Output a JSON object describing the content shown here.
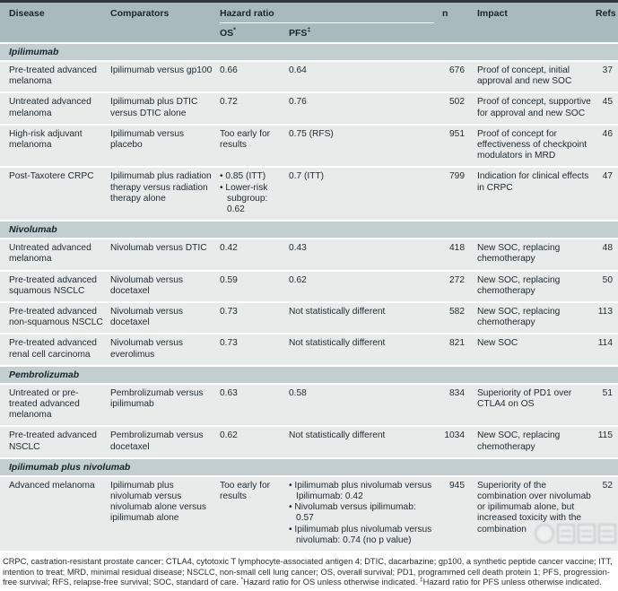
{
  "colors": {
    "top_bar": "#2e373b",
    "header_bg": "#a9babd",
    "section_bg": "#c3ced0",
    "row_bg": "#e7eceb",
    "text": "#1d282d"
  },
  "header": {
    "disease": "Disease",
    "comparators": "Comparators",
    "hazard_ratio": "Hazard ratio",
    "os": "OS",
    "os_sup": "*",
    "pfs": "PFS",
    "pfs_sup": "‡",
    "n": "n",
    "impact": "Impact",
    "refs": "Refs"
  },
  "sections": [
    {
      "name": "Ipilimumab",
      "rows": [
        {
          "disease": "Pre-treated advanced melanoma",
          "comparators": "Ipilimumab versus gp100",
          "os": "0.66",
          "pfs": "0.64",
          "n": "676",
          "impact": "Proof of concept, initial approval and new SOC",
          "refs": "37"
        },
        {
          "disease": "Untreated advanced melanoma",
          "comparators": "Ipilimumab plus DTIC versus DTIC alone",
          "os": "0.72",
          "pfs": "0.76",
          "n": "502",
          "impact": "Proof of concept, supportive for approval and new SOC",
          "refs": "45"
        },
        {
          "disease": "High-risk adjuvant melanoma",
          "comparators": "Ipilimumab versus placebo",
          "os": "Too early for results",
          "pfs": "0.75 (RFS)",
          "n": "951",
          "impact": "Proof of concept for effectiveness of checkpoint modulators in MRD",
          "refs": "46"
        },
        {
          "disease": "Post-Taxotere CRPC",
          "comparators": "Ipilimumab plus radiation therapy versus radiation therapy alone",
          "os_bullets": [
            "0.85 (ITT)",
            "Lower-risk subgroup: 0.62"
          ],
          "pfs": "0.7 (ITT)",
          "n": "799",
          "impact": "Indication for clinical effects in CRPC",
          "refs": "47"
        }
      ]
    },
    {
      "name": "Nivolumab",
      "rows": [
        {
          "disease": "Untreated advanced melanoma",
          "comparators": "Nivolumab versus DTIC",
          "os": "0.42",
          "pfs": "0.43",
          "n": "418",
          "impact": "New SOC, replacing chemotherapy",
          "refs": "48"
        },
        {
          "disease": "Pre-treated advanced squamous NSCLC",
          "comparators": "Nivolumab versus docetaxel",
          "os": "0.59",
          "pfs": "0.62",
          "n": "272",
          "impact": "New SOC, replacing chemotherapy",
          "refs": "50"
        },
        {
          "disease": "Pre-treated advanced non-squamous NSCLC",
          "comparators": "Nivolumab versus docetaxel",
          "os": "0.73",
          "pfs": "Not statistically different",
          "n": "582",
          "impact": "New SOC, replacing chemotherapy",
          "refs": "113"
        },
        {
          "disease": "Pre-treated advanced renal cell carcinoma",
          "comparators": "Nivolumab versus everolimus",
          "os": "0.73",
          "pfs": "Not statistically different",
          "n": "821",
          "impact": "New SOC",
          "refs": "114"
        }
      ]
    },
    {
      "name": "Pembrolizumab",
      "rows": [
        {
          "disease": "Untreated or pre-treated advanced melanoma",
          "comparators": "Pembrolizumab versus ipilimumab",
          "os": "0.63",
          "pfs": "0.58",
          "n": "834",
          "impact": "Superiority of PD1 over CTLA4 on OS",
          "refs": "51"
        },
        {
          "disease": "Pre-treated advanced NSCLC",
          "comparators": "Pembrolizumab versus docetaxel",
          "os": "0.62",
          "pfs": "Not statistically different",
          "n": "1034",
          "impact": "New SOC, replacing chemotherapy",
          "refs": "115"
        }
      ]
    },
    {
      "name": "Ipilimumab plus nivolumab",
      "rows": [
        {
          "disease": "Advanced melanoma",
          "comparators": "Ipilimumab plus nivolumab versus nivolumab alone versus ipilimumab alone",
          "os": "Too early for results",
          "pfs_bullets": [
            "Ipilimumab plus nivolumab versus Ipilimumab: 0.42",
            "Nivolumab versus ipilimumab: 0.57",
            "Ipilimumab plus nivolumab versus nivolumab: 0.74 (no p value)"
          ],
          "n": "945",
          "impact": "Superiority of the combination over nivolumab or ipilimumab alone, but increased toxicity with the combination",
          "refs": "52"
        }
      ]
    }
  ],
  "footnote": {
    "abbrev": "CRPC, castration-resistant prostate cancer; CTLA4, cytotoxic T lymphocyte-associated antigen 4; DTIC, dacarbazine; gp100, a synthetic peptide cancer vaccine; ITT, intention to treat; MRD, minimal residual disease; NSCLC, non-small cell lung cancer; OS, overall survival; PD1, programmed cell death protein 1; PFS, progression-free survival; RFS, relapse-free survival; SOC, standard of care. ",
    "os_note_sup": "*",
    "os_note": "Hazard ratio for OS unless otherwise indicated. ",
    "pfs_note_sup": "‡",
    "pfs_note": "Hazard ratio for PFS unless otherwise indicated."
  }
}
